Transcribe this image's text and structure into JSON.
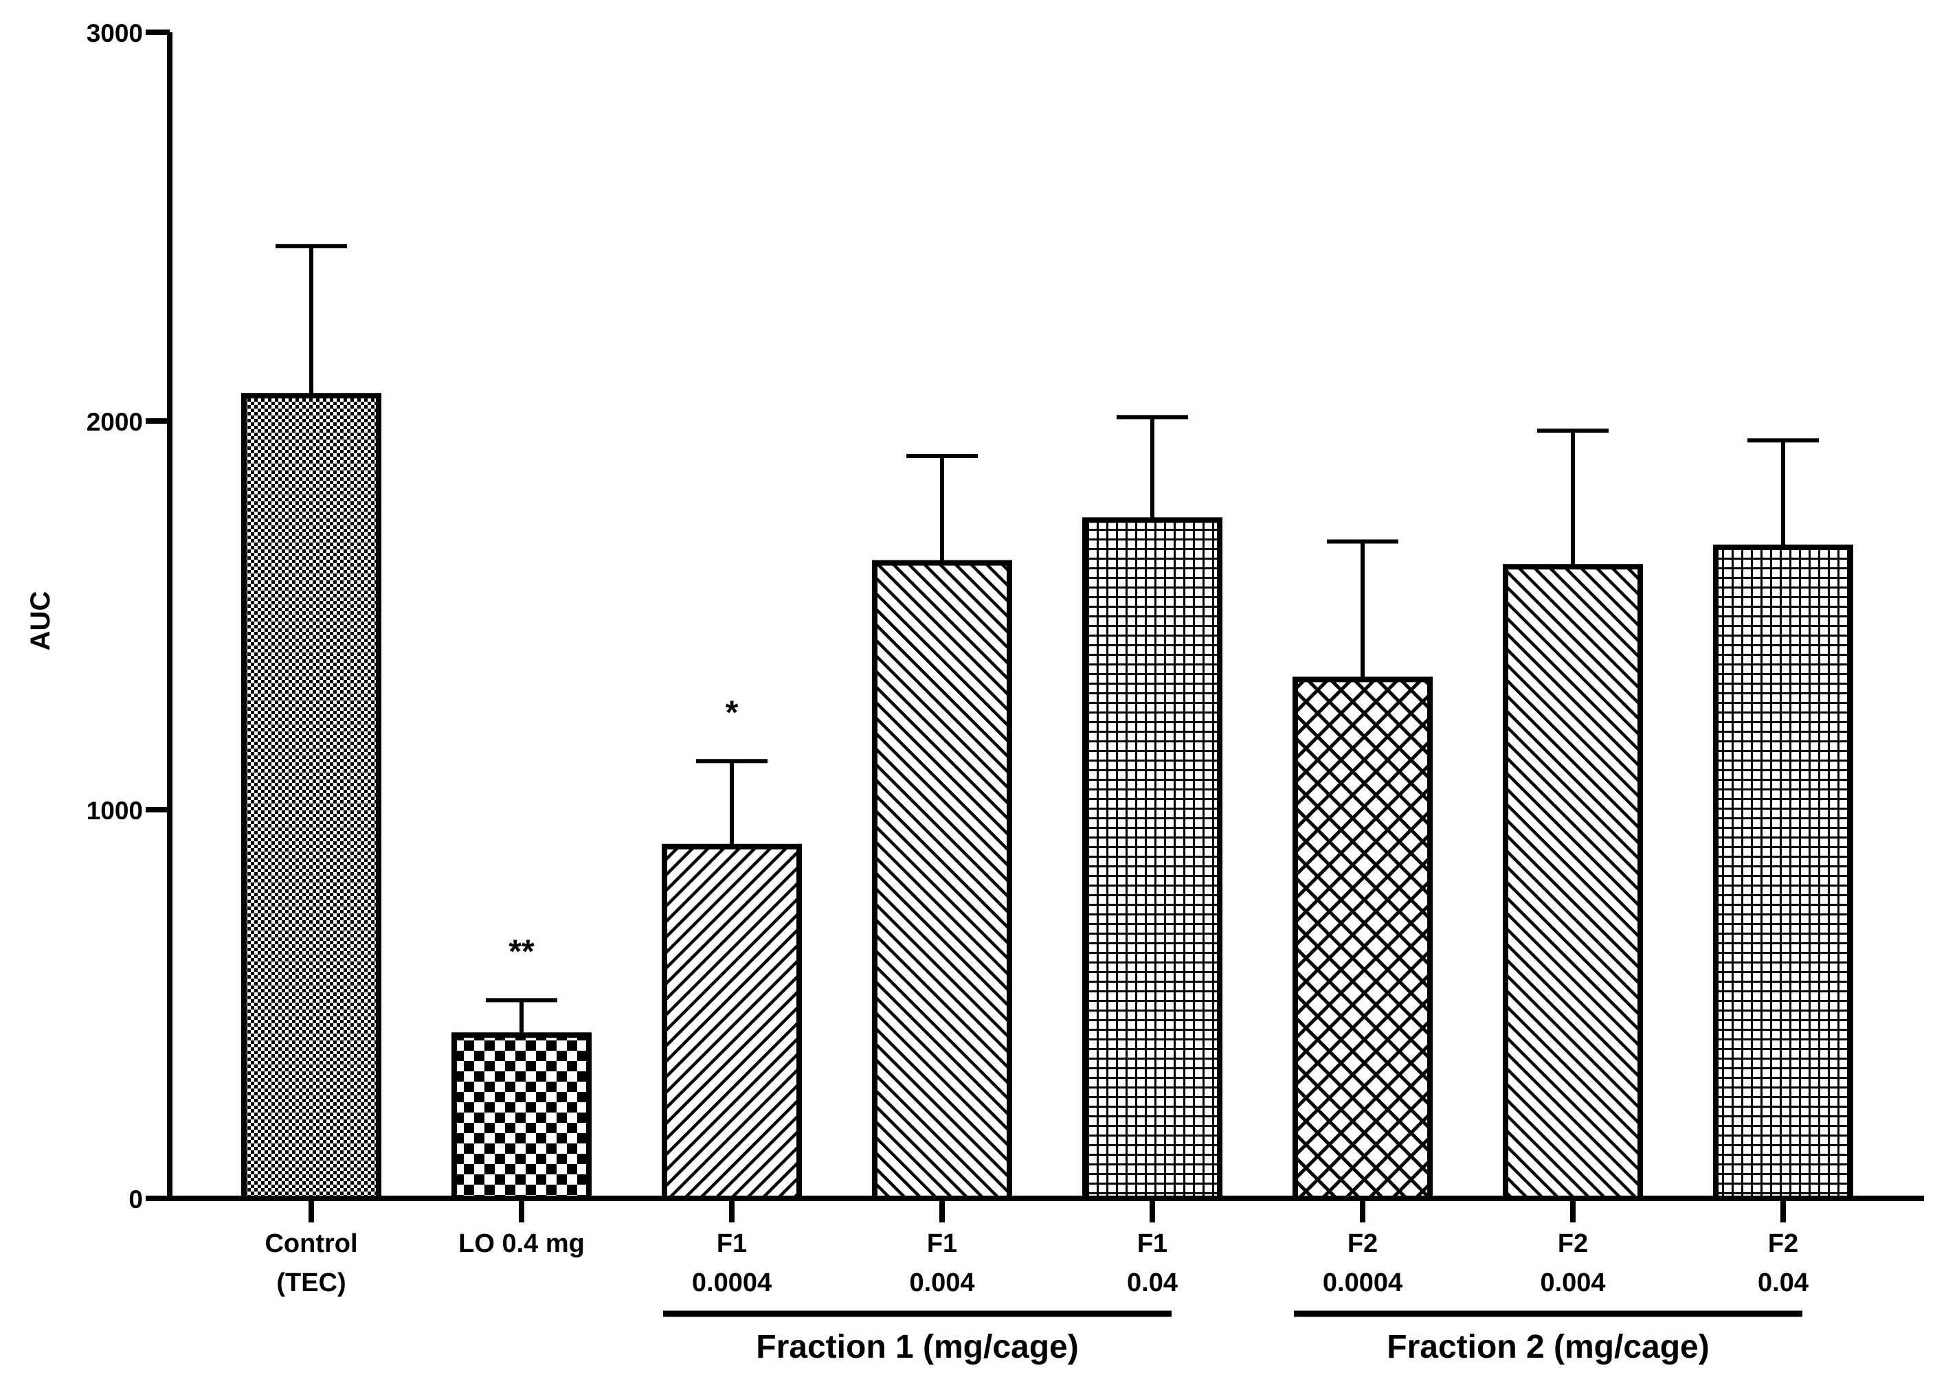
{
  "chart_data": {
    "type": "bar",
    "title": "",
    "xlabel": "",
    "ylabel": "AUC",
    "ylim": [
      0,
      3000
    ],
    "yticks": [
      0,
      1000,
      2000,
      3000
    ],
    "grid": false,
    "categories": [
      {
        "line1": "Control",
        "line2": "(TEC)",
        "pattern": "fine-check"
      },
      {
        "line1": "LO 0.4 mg",
        "line2": "",
        "pattern": "big-check"
      },
      {
        "line1": "F1",
        "line2": "0.0004",
        "pattern": "diag-up"
      },
      {
        "line1": "F1",
        "line2": "0.004",
        "pattern": "diag-down"
      },
      {
        "line1": "F1",
        "line2": "0.04",
        "pattern": "grid"
      },
      {
        "line1": "F2",
        "line2": "0.0004",
        "pattern": "cross-hatch"
      },
      {
        "line1": "F2",
        "line2": "0.004",
        "pattern": "diag-down"
      },
      {
        "line1": "F2",
        "line2": "0.04",
        "pattern": "grid"
      }
    ],
    "values": [
      2065,
      420,
      905,
      1635,
      1745,
      1335,
      1625,
      1675
    ],
    "error_upper": [
      2450,
      510,
      1125,
      1910,
      2010,
      1690,
      1975,
      1950
    ],
    "significance": [
      "",
      "**",
      "*",
      "",
      "",
      "",
      "",
      ""
    ],
    "groups": [
      {
        "label": "Fraction 1 (mg/cage)",
        "from": 2,
        "to": 4
      },
      {
        "label": "Fraction 2 (mg/cage)",
        "from": 5,
        "to": 7
      }
    ]
  }
}
